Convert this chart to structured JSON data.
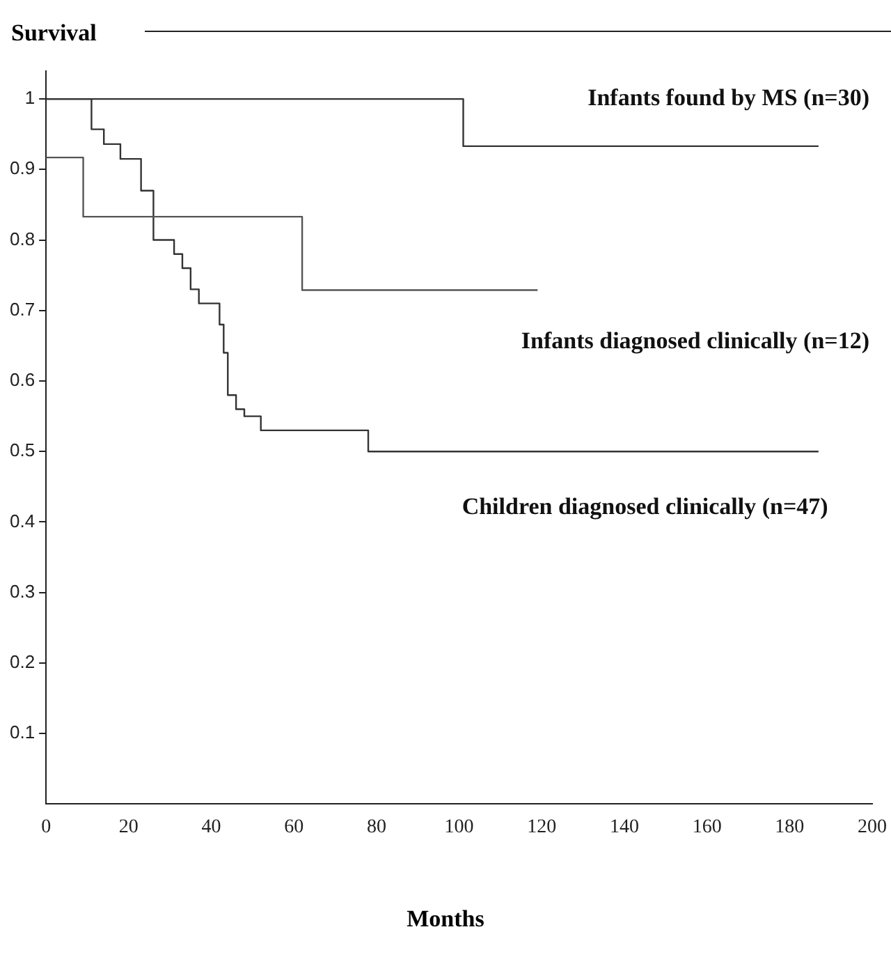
{
  "chart_data": {
    "type": "step",
    "ylabel": "Survival",
    "xlabel": "Months",
    "xlim": [
      0,
      200
    ],
    "xticks": [
      0,
      20,
      40,
      60,
      80,
      100,
      120,
      140,
      160,
      180,
      200
    ],
    "ylim": [
      0,
      1.04
    ],
    "yticks": [
      0.1,
      0.2,
      0.3,
      0.4,
      0.5,
      0.6,
      0.7,
      0.8,
      0.9,
      1
    ],
    "grid": false,
    "legend": false,
    "marker": "none",
    "line_style": "solid",
    "series": [
      {
        "name": "Infants found by MS (n=30)",
        "color": "#333333",
        "x": [
          0,
          101,
          187
        ],
        "values": [
          1,
          0.933,
          0.933
        ]
      },
      {
        "name": "Infants diagnosed clinically (n=12)",
        "color": "#555555",
        "x": [
          0,
          9,
          62,
          119
        ],
        "values": [
          0.917,
          0.833,
          0.729,
          0.729
        ]
      },
      {
        "name": "Children diagnosed clinically (n=47)",
        "color": "#333333",
        "x": [
          0,
          11,
          14,
          18,
          23,
          26,
          31,
          33,
          35,
          37,
          42,
          43,
          44,
          46,
          48,
          52,
          78,
          187
        ],
        "values": [
          1,
          0.957,
          0.936,
          0.915,
          0.87,
          0.8,
          0.78,
          0.76,
          0.73,
          0.71,
          0.68,
          0.64,
          0.58,
          0.56,
          0.55,
          0.53,
          0.5,
          0.5
        ]
      }
    ]
  }
}
